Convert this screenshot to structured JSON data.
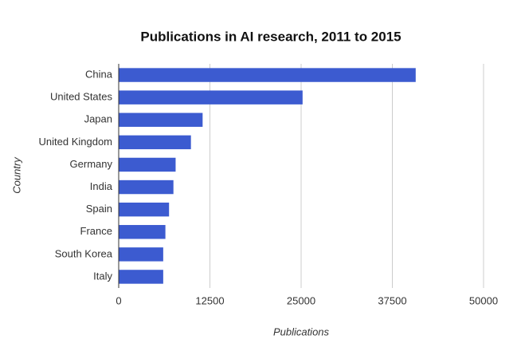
{
  "chart_data": {
    "type": "bar",
    "orientation": "horizontal",
    "title": "Publications in AI research, 2011 to 2015",
    "x_label": "Publications",
    "y_label": "Country",
    "categories": [
      "China",
      "United States",
      "Japan",
      "United Kingdom",
      "Germany",
      "India",
      "Spain",
      "France",
      "South Korea",
      "Italy"
    ],
    "values": [
      40700,
      25200,
      11500,
      9900,
      7800,
      7500,
      6900,
      6400,
      6100,
      6100
    ],
    "color": "#3c5bd0",
    "xlim": [
      0,
      50000
    ],
    "xticks": [
      0,
      12500,
      25000,
      37500,
      50000
    ],
    "grid": true
  }
}
